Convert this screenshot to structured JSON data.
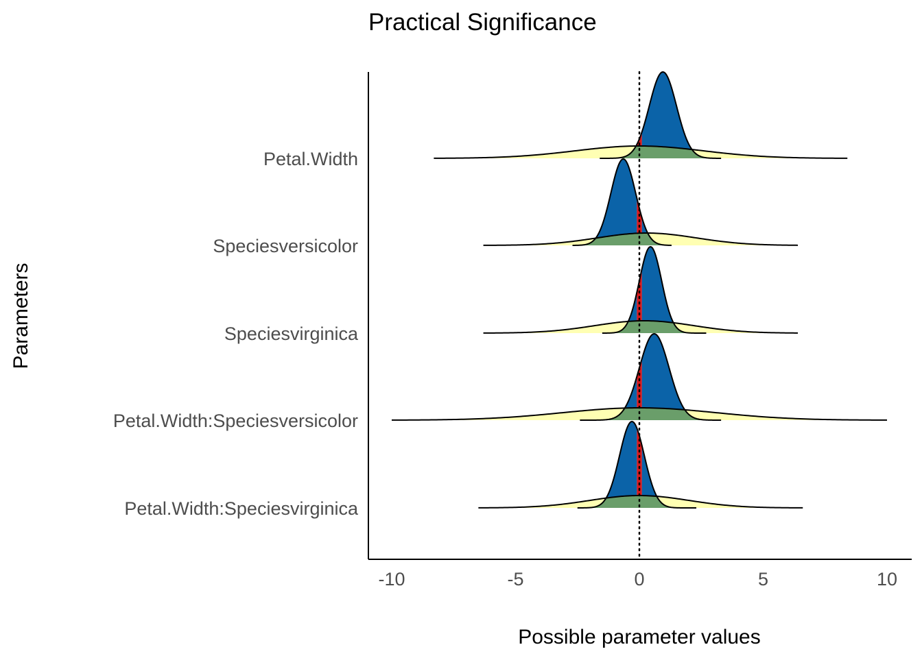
{
  "chart_data": {
    "type": "area",
    "title": "Practical Significance",
    "xlabel": "Possible parameter values",
    "ylabel": "Parameters",
    "xlim": [
      -11,
      11
    ],
    "x_ticks": [
      -10,
      -5,
      0,
      5,
      10
    ],
    "x_tick_labels": [
      "-10",
      "-5",
      "0",
      "5",
      "10"
    ],
    "grid": false,
    "legend": "none",
    "rope": [
      -0.1,
      0.1
    ],
    "reference_line": 0,
    "colors": {
      "posterior_positive": "#0b63a8",
      "posterior_negative": "#0b63a8",
      "rope_fill": "#d7191c",
      "prior_fill": "#ffffa0",
      "overlap_fill": "#6a9e6a",
      "outline": "#000000"
    },
    "parameters": [
      {
        "name": "Petal.Width",
        "posterior": {
          "mean": 0.95,
          "sd": 0.55,
          "min": -1.6,
          "max": 3.3
        },
        "prior": {
          "mean": 0.0,
          "sd": 2.6,
          "min": -8.3,
          "max": 8.4
        }
      },
      {
        "name": "Speciesversicolor",
        "posterior": {
          "mean": -0.65,
          "sd": 0.5,
          "min": -2.7,
          "max": 1.3
        },
        "prior": {
          "mean": 0.3,
          "sd": 2.0,
          "min": -6.3,
          "max": 6.4
        }
      },
      {
        "name": "Speciesvirginica",
        "posterior": {
          "mean": 0.45,
          "sd": 0.45,
          "min": -1.5,
          "max": 2.7
        },
        "prior": {
          "mean": 0.2,
          "sd": 2.0,
          "min": -6.3,
          "max": 6.4
        }
      },
      {
        "name": "Petal.Width:Speciesversicolor",
        "posterior": {
          "mean": 0.6,
          "sd": 0.6,
          "min": -2.4,
          "max": 3.3
        },
        "prior": {
          "mean": 0.0,
          "sd": 3.1,
          "min": -10.0,
          "max": 10.0
        }
      },
      {
        "name": "Petal.Width:Speciesvirginica",
        "posterior": {
          "mean": -0.3,
          "sd": 0.5,
          "min": -2.5,
          "max": 2.3
        },
        "prior": {
          "mean": 0.0,
          "sd": 2.0,
          "min": -6.5,
          "max": 6.6
        }
      }
    ]
  }
}
